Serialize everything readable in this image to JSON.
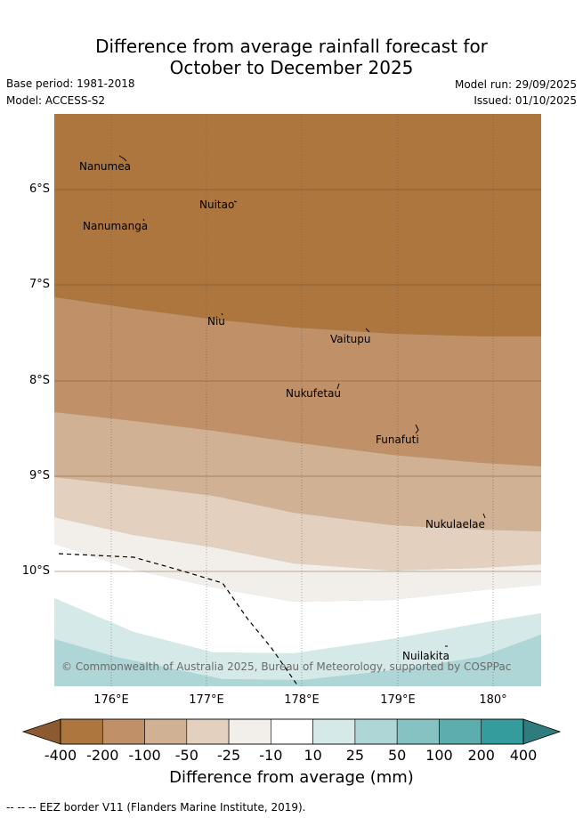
{
  "title_line1": "Difference from average rainfall forecast for",
  "title_line2": "October to December 2025",
  "base_period": "Base period: 1981-2018",
  "model": "Model: ACCESS-S2",
  "model_run": "Model run: 29/09/2025",
  "issued": "Issued: 01/10/2025",
  "lat_labels": [
    "6°S",
    "7°S",
    "8°S",
    "9°S",
    "10°S"
  ],
  "lon_labels": [
    "176°E",
    "177°E",
    "178°E",
    "179°E",
    "180°"
  ],
  "places": [
    "Nanumea",
    "Nuitao",
    "Nanumanga",
    "Niu",
    "Vaitupu",
    "Nukufetau",
    "Funafuti",
    "Nukulaelae",
    "Nuilakita"
  ],
  "copyright": "© Commonwealth of Australia 2025, Bureau of Meteorology, supported by COSPPac",
  "colorbar": {
    "ticks": [
      "-400",
      "-200",
      "-100",
      "-50",
      "-25",
      "-10",
      "10",
      "25",
      "50",
      "100",
      "200",
      "400"
    ],
    "title": "Difference from average (mm)",
    "colors": [
      "#8c5a30",
      "#ad763e",
      "#c09168",
      "#d1b193",
      "#e3d0bf",
      "#f2eeea",
      "#ffffff",
      "#d4e9e8",
      "#aed6d6",
      "#86c2c2",
      "#5caeae",
      "#349c9c",
      "#2e7c7e"
    ]
  },
  "eez_note": "--  --  -- EEZ border V11 (Flanders Marine Institute, 2019)."
}
